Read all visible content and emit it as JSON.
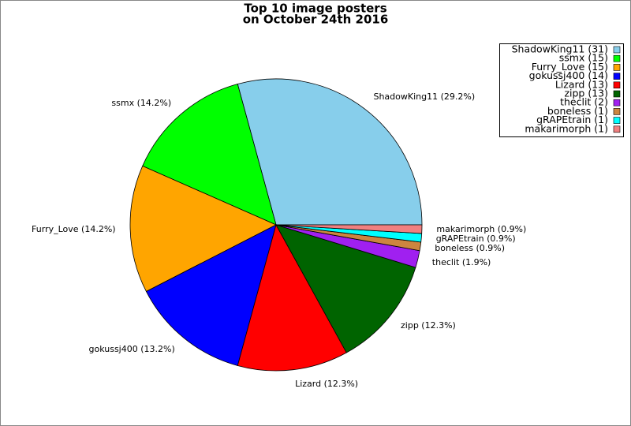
{
  "chart_data": {
    "type": "pie",
    "title": [
      "Top 10 image posters",
      "on October 24th 2016"
    ],
    "categories": [
      "ShadowKing11",
      "ssmx",
      "Furry_Love",
      "gokussj400",
      "Lizard",
      "zipp",
      "theclit",
      "boneless",
      "gRAPEtrain",
      "makarimorph"
    ],
    "values": [
      31,
      15,
      15,
      14,
      13,
      13,
      2,
      1,
      1,
      1
    ],
    "labels": [
      "ShadowKing11 (29.2%)",
      "ssmx (14.2%)",
      "Furry_Love (14.2%)",
      "gokussj400 (13.2%)",
      "Lizard (12.3%)",
      "zipp (12.3%)",
      "theclit (1.9%)",
      "boneless (0.9%)",
      "gRAPEtrain (0.9%)",
      "makarimorph (0.9%)"
    ],
    "legend_labels": [
      "ShadowKing11 (31)",
      "ssmx (15)",
      "Furry_Love (15)",
      "gokussj400 (14)",
      "Lizard (13)",
      "zipp (13)",
      "theclit (2)",
      "boneless (1)",
      "gRAPEtrain (1)",
      "makarimorph (1)"
    ],
    "colors": [
      "#87ceeb",
      "#00ff00",
      "#ffa500",
      "#0000ff",
      "#ff0000",
      "#006400",
      "#a020f0",
      "#cd853f",
      "#00ffff",
      "#f08080"
    ],
    "legend": "upper right"
  }
}
